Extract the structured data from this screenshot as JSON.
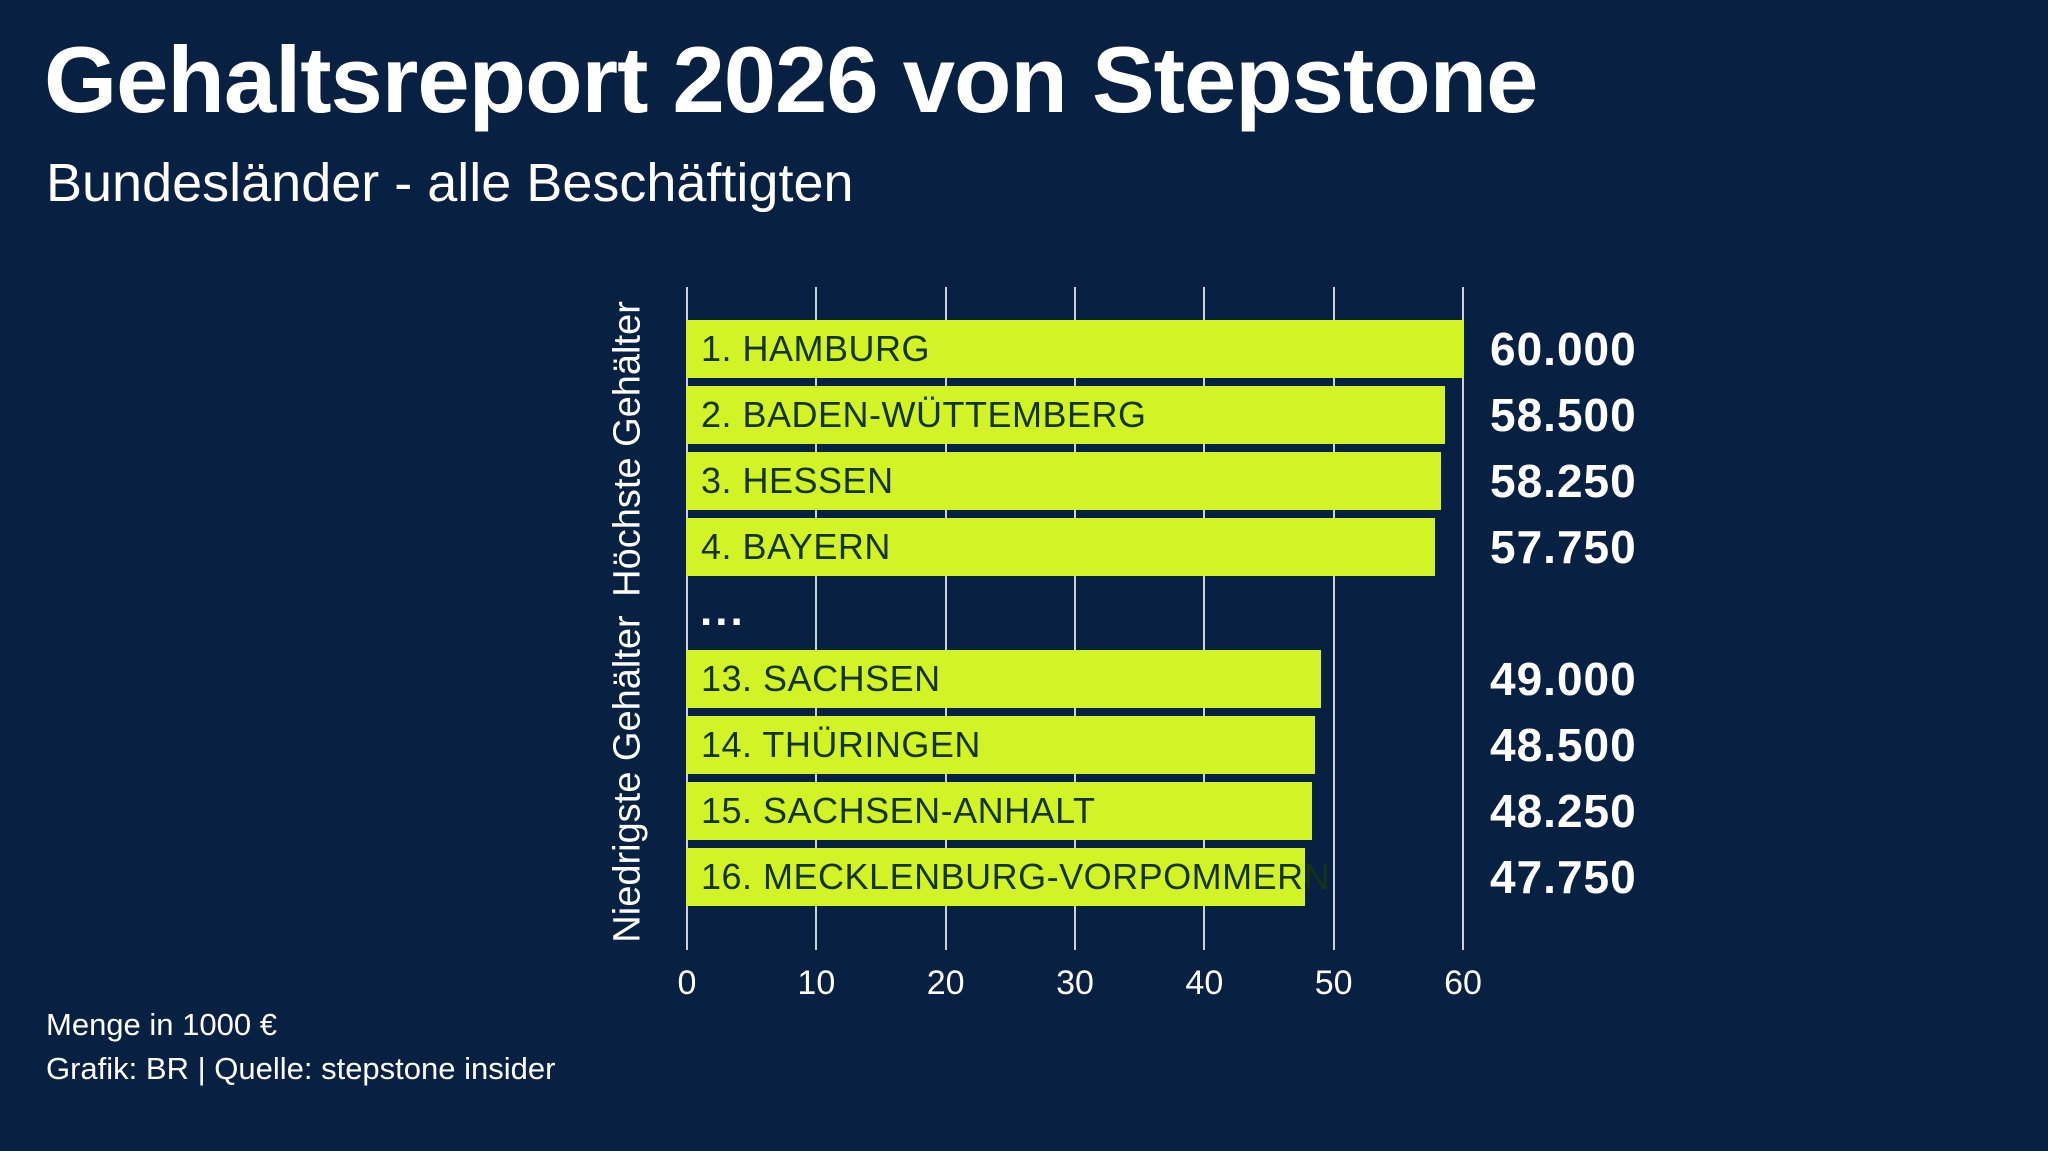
{
  "header": {
    "title": "Gehaltsreport 2026 von Stepstone",
    "subtitle": "Bundesländer - alle Beschäftigten"
  },
  "colors": {
    "background": "#082142",
    "bar_fill": "#d2f426",
    "bar_text": "#143317",
    "text": "#ffffff",
    "gridline": "rgba(235,240,246,0.85)"
  },
  "chart_data": {
    "type": "bar",
    "orientation": "horizontal",
    "x_ticks": [
      0,
      10,
      20,
      30,
      40,
      50,
      60
    ],
    "x_max": 60,
    "xlabel": "",
    "ylabel": "",
    "grid": true,
    "separator": "...",
    "groups": [
      {
        "label": "Höchste Gehälter",
        "bars": [
          {
            "name": "1. HAMBURG",
            "value": 60.0,
            "value_label": "60.000"
          },
          {
            "name": "2. BADEN-WÜTTEMBERG",
            "value": 58.5,
            "value_label": "58.500"
          },
          {
            "name": "3. HESSEN",
            "value": 58.25,
            "value_label": "58.250"
          },
          {
            "name": "4. BAYERN",
            "value": 57.75,
            "value_label": "57.750"
          }
        ]
      },
      {
        "label": "Niedrigste Gehälter",
        "bars": [
          {
            "name": "13. SACHSEN",
            "value": 49.0,
            "value_label": "49.000"
          },
          {
            "name": "14. THÜRINGEN",
            "value": 48.5,
            "value_label": "48.500"
          },
          {
            "name": "15. SACHSEN-ANHALT",
            "value": 48.25,
            "value_label": "48.250"
          },
          {
            "name": "16. MECKLENBURG-VORPOMMERN",
            "value": 47.75,
            "value_label": "47.750"
          }
        ]
      }
    ]
  },
  "footer": {
    "unit_note": "Menge in 1000 €",
    "source": "Grafik: BR | Quelle: stepstone insider"
  }
}
